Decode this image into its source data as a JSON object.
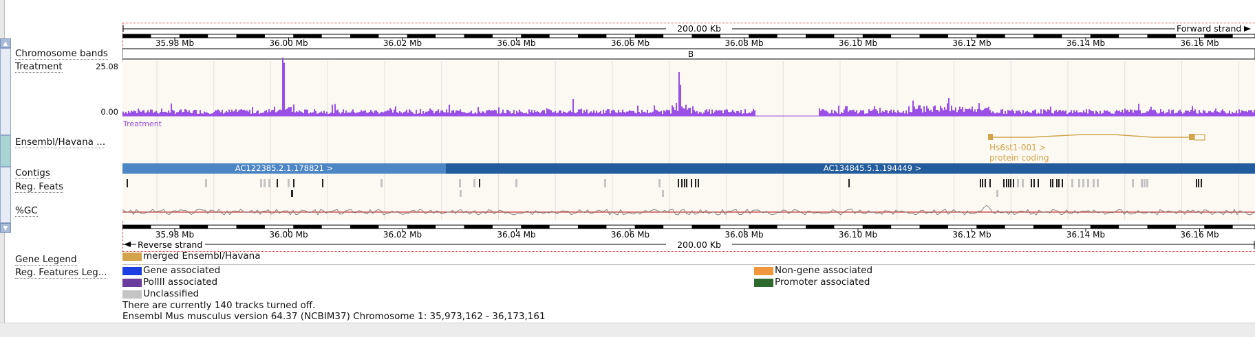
{
  "scale": {
    "span_top": "200.00 Kb",
    "span_bottom": "200.00 Kb",
    "forward_strand": "Forward strand",
    "reverse_strand": "Reverse strand",
    "ticks": [
      "35.98 Mb",
      "36.00 Mb",
      "36.02 Mb",
      "36.04 Mb",
      "36.06 Mb",
      "36.08 Mb",
      "36.10 Mb",
      "36.12 Mb",
      "36.14 Mb",
      "36.16 Mb"
    ]
  },
  "tracks": {
    "chromosome_bands": {
      "label": "Chromosome bands",
      "band": "B"
    },
    "treatment": {
      "label": "Treatment",
      "max": "25.08",
      "min": "0.00",
      "caption": "Treatment"
    },
    "gene": {
      "label": "Ensembl/Havana ...",
      "name": "Hs6st1-001 >",
      "biotype": "protein coding"
    },
    "contigs": {
      "label": "Contigs",
      "contig1": "AC122385.2.1.178821 >",
      "contig2": "AC134845.5.1.194449 >"
    },
    "reg_feats": {
      "label": "Reg. Feats"
    },
    "gc": {
      "label": "%GC"
    }
  },
  "legend": {
    "gene_legend_label": "Gene Legend",
    "merged": "merged Ensembl/Havana",
    "reg_legend_label": "Reg. Features Leg...",
    "gene_associated": "Gene associated",
    "non_gene_associated": "Non-gene  associated",
    "polIII": "PolIII associated",
    "promoter": "Promoter associated",
    "unclassified": "Unclassified"
  },
  "footer": {
    "tracks_off": "There are currently 140 tracks turned off.",
    "version": "Ensembl Mus musculus version 64.37 (NCBIM37) Chromosome 1: 35,973,162 - 36,173,161"
  },
  "colors": {
    "treatment": "#9a4fe6",
    "gene": "#d4a44c",
    "contig1": "#4d86c4",
    "contig2": "#235c9c",
    "gc_line": "#c83030",
    "gene_associated": "#1b3fe0",
    "non_gene": "#f0963c",
    "polIII": "#6a3c9c",
    "promoter": "#2e6a2e",
    "unclassified": "#c4c4c4"
  }
}
